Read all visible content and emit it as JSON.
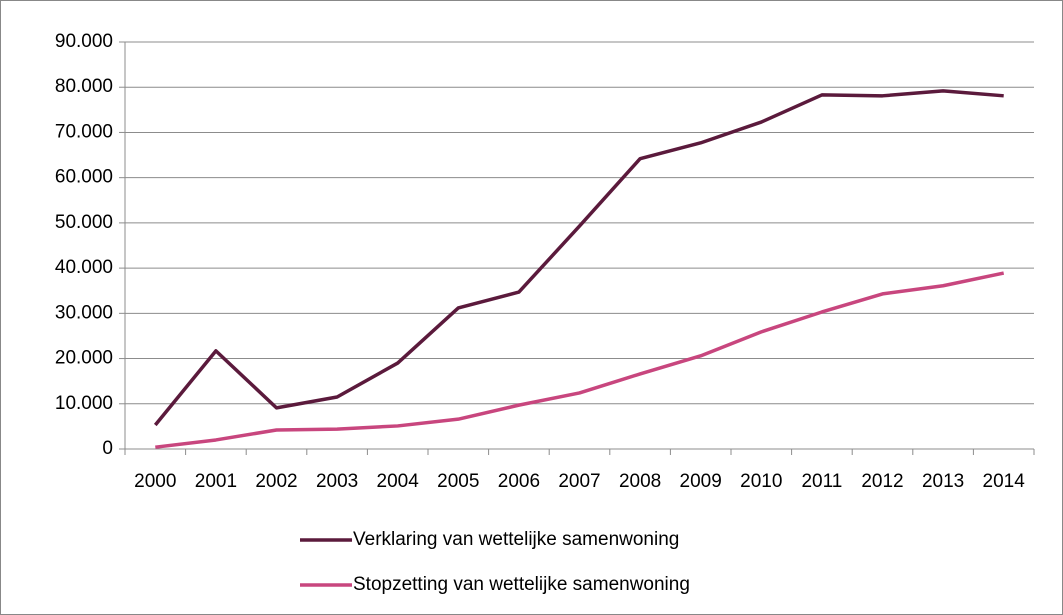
{
  "chart_data": {
    "type": "line",
    "categories": [
      "2000",
      "2001",
      "2002",
      "2003",
      "2004",
      "2005",
      "2006",
      "2007",
      "2008",
      "2009",
      "2010",
      "2011",
      "2012",
      "2013",
      "2014"
    ],
    "series": [
      {
        "name": "Verklaring van wettelijke samenwoning",
        "color": "#5b1a3c",
        "values": [
          5300,
          21700,
          9100,
          11500,
          19000,
          31200,
          34700,
          49300,
          64200,
          67700,
          72300,
          78300,
          78100,
          79200,
          78100
        ]
      },
      {
        "name": "Stopzetting van wettelijke samenwoning",
        "color": "#c8467e",
        "values": [
          400,
          2000,
          4200,
          4400,
          5100,
          6600,
          9700,
          12400,
          16600,
          20600,
          25900,
          30300,
          34300,
          36100,
          38900
        ]
      }
    ],
    "ylim": [
      0,
      90000
    ],
    "yticks": [
      0,
      {
        "value": 10000,
        "label": "10.000"
      },
      {
        "value": 20000,
        "label": "20.000"
      },
      {
        "value": 30000,
        "label": "30.000"
      },
      {
        "value": 40000,
        "label": "40.000"
      },
      {
        "value": 50000,
        "label": "50.000"
      },
      {
        "value": 60000,
        "label": "60.000"
      },
      {
        "value": 70000,
        "label": "70.000"
      },
      {
        "value": 80000,
        "label": "80.000"
      },
      {
        "value": 90000,
        "label": "90.000"
      }
    ],
    "grid": true,
    "legend": "bottom"
  }
}
